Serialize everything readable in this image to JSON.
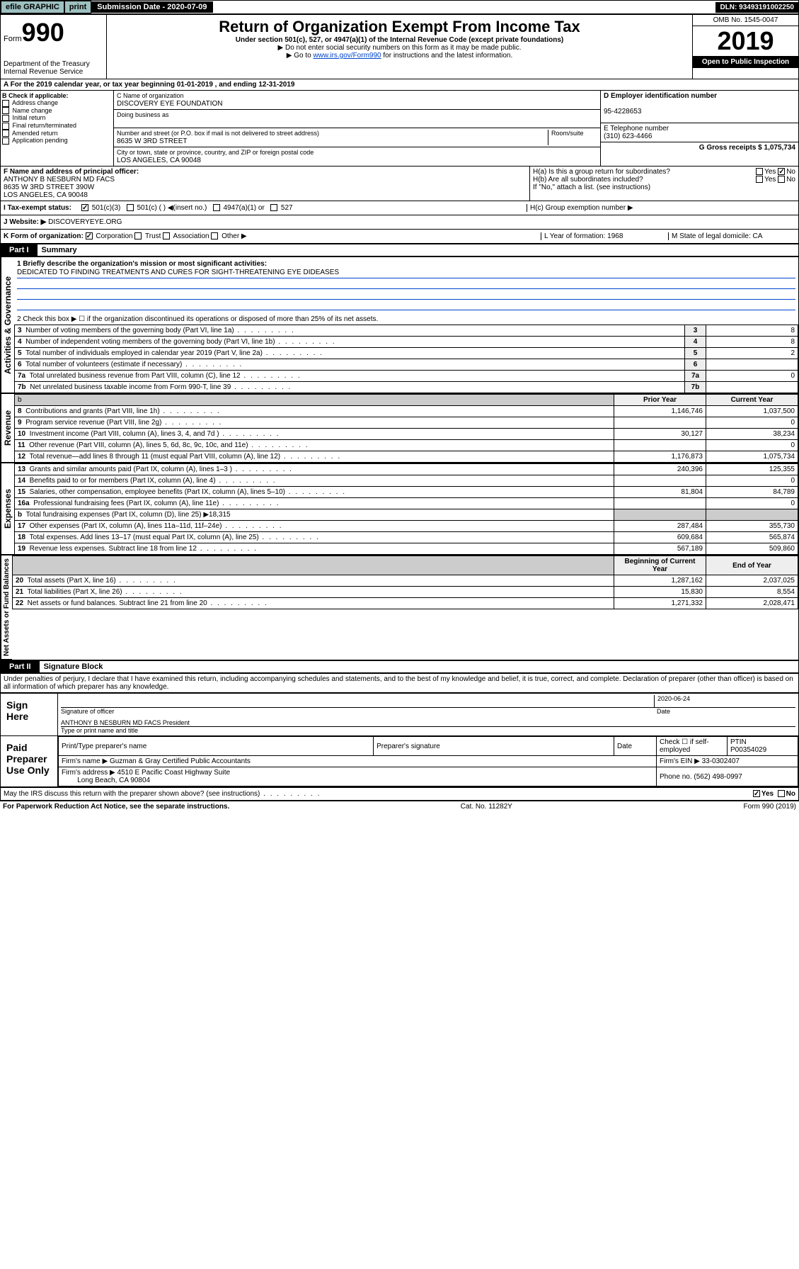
{
  "topbar": {
    "efile": "efile GRAPHIC",
    "print": "print",
    "subdate_lbl": "Submission Date - 2020-07-09",
    "dln": "DLN: 93493191002250"
  },
  "header": {
    "form_lbl": "Form",
    "form_num": "990",
    "dept": "Department of the Treasury\nInternal Revenue Service",
    "title": "Return of Organization Exempt From Income Tax",
    "sub": "Under section 501(c), 527, or 4947(a)(1) of the Internal Revenue Code (except private foundations)",
    "line1": "▶ Do not enter social security numbers on this form as it may be made public.",
    "line2a": "▶ Go to ",
    "line2link": "www.irs.gov/Form990",
    "line2b": " for instructions and the latest information.",
    "omb": "OMB No. 1545-0047",
    "year": "2019",
    "open": "Open to Public Inspection"
  },
  "A": {
    "text": "A For the 2019 calendar year, or tax year beginning 01-01-2019   , and ending 12-31-2019"
  },
  "B": {
    "hdr": "B Check if applicable:",
    "items": [
      "Address change",
      "Name change",
      "Initial return",
      "Final return/terminated",
      "Amended return",
      "Application pending"
    ]
  },
  "C": {
    "name_lbl": "C Name of organization",
    "name": "DISCOVERY EYE FOUNDATION",
    "dba_lbl": "Doing business as",
    "addr_lbl": "Number and street (or P.O. box if mail is not delivered to street address)",
    "room_lbl": "Room/suite",
    "addr": "8635 W 3RD STREET",
    "city_lbl": "City or town, state or province, country, and ZIP or foreign postal code",
    "city": "LOS ANGELES, CA  90048"
  },
  "D": {
    "lbl": "D Employer identification number",
    "val": "95-4228653"
  },
  "E": {
    "lbl": "E Telephone number",
    "val": "(310) 623-4466"
  },
  "G": {
    "lbl": "G Gross receipts $ 1,075,734"
  },
  "F": {
    "lbl": "F  Name and address of principal officer:",
    "name": "ANTHONY B NESBURN MD FACS",
    "addr": "8635 W 3RD STREET 390W\nLOS ANGELES, CA  90048"
  },
  "H": {
    "a": "H(a)  Is this a group return for subordinates?",
    "b": "H(b)  Are all subordinates included?",
    "bnote": "If \"No,\" attach a list. (see instructions)",
    "c": "H(c)  Group exemption number ▶",
    "yes": "Yes",
    "no": "No"
  },
  "I": {
    "lbl": "I  Tax-exempt status:",
    "opts": [
      "501(c)(3)",
      "501(c) (  ) ◀(insert no.)",
      "4947(a)(1) or",
      "527"
    ]
  },
  "J": {
    "lbl": "J  Website: ▶",
    "val": "DISCOVERYEYE.ORG"
  },
  "K": {
    "lbl": "K Form of organization:",
    "opts": [
      "Corporation",
      "Trust",
      "Association",
      "Other ▶"
    ]
  },
  "L": {
    "lbl": "L Year of formation: 1968"
  },
  "M": {
    "lbl": "M State of legal domicile: CA"
  },
  "part1": {
    "hdr": "Part I",
    "title": "Summary"
  },
  "gov": {
    "label": "Activities & Governance",
    "l1": "1  Briefly describe the organization's mission or most significant activities:",
    "mission": "DEDICATED TO FINDING TREATMENTS AND CURES FOR SIGHT-THREATENING EYE DIDEASES",
    "l2": "2   Check this box ▶ ☐  if the organization discontinued its operations or disposed of more than 25% of its net assets.",
    "rows": [
      {
        "n": "3",
        "t": "Number of voting members of the governing body (Part VI, line 1a)",
        "v": "8"
      },
      {
        "n": "4",
        "t": "Number of independent voting members of the governing body (Part VI, line 1b)",
        "v": "8"
      },
      {
        "n": "5",
        "t": "Total number of individuals employed in calendar year 2019 (Part V, line 2a)",
        "v": "2"
      },
      {
        "n": "6",
        "t": "Total number of volunteers (estimate if necessary)",
        "v": ""
      },
      {
        "n": "7a",
        "t": "Total unrelated business revenue from Part VIII, column (C), line 12",
        "v": "0"
      },
      {
        "n": "7b",
        "t": "Net unrelated business taxable income from Form 990-T, line 39",
        "v": ""
      }
    ]
  },
  "rev": {
    "label": "Revenue",
    "hdr_prior": "Prior Year",
    "hdr_curr": "Current Year",
    "rows": [
      {
        "n": "8",
        "t": "Contributions and grants (Part VIII, line 1h)",
        "p": "1,146,746",
        "c": "1,037,500"
      },
      {
        "n": "9",
        "t": "Program service revenue (Part VIII, line 2g)",
        "p": "",
        "c": "0"
      },
      {
        "n": "10",
        "t": "Investment income (Part VIII, column (A), lines 3, 4, and 7d )",
        "p": "30,127",
        "c": "38,234"
      },
      {
        "n": "11",
        "t": "Other revenue (Part VIII, column (A), lines 5, 6d, 8c, 9c, 10c, and 11e)",
        "p": "",
        "c": "0"
      },
      {
        "n": "12",
        "t": "Total revenue—add lines 8 through 11 (must equal Part VIII, column (A), line 12)",
        "p": "1,176,873",
        "c": "1,075,734"
      }
    ]
  },
  "exp": {
    "label": "Expenses",
    "rows": [
      {
        "n": "13",
        "t": "Grants and similar amounts paid (Part IX, column (A), lines 1–3 )",
        "p": "240,396",
        "c": "125,355"
      },
      {
        "n": "14",
        "t": "Benefits paid to or for members (Part IX, column (A), line 4)",
        "p": "",
        "c": "0"
      },
      {
        "n": "15",
        "t": "Salaries, other compensation, employee benefits (Part IX, column (A), lines 5–10)",
        "p": "81,804",
        "c": "84,789"
      },
      {
        "n": "16a",
        "t": "Professional fundraising fees (Part IX, column (A), line 11e)",
        "p": "",
        "c": "0"
      },
      {
        "n": "b",
        "t": "Total fundraising expenses (Part IX, column (D), line 25) ▶18,315",
        "p": null,
        "c": null
      },
      {
        "n": "17",
        "t": "Other expenses (Part IX, column (A), lines 11a–11d, 11f–24e)",
        "p": "287,484",
        "c": "355,730"
      },
      {
        "n": "18",
        "t": "Total expenses. Add lines 13–17 (must equal Part IX, column (A), line 25)",
        "p": "609,684",
        "c": "565,874"
      },
      {
        "n": "19",
        "t": "Revenue less expenses. Subtract line 18 from line 12",
        "p": "567,189",
        "c": "509,860"
      }
    ]
  },
  "net": {
    "label": "Net Assets or Fund Balances",
    "hdr_beg": "Beginning of Current Year",
    "hdr_end": "End of Year",
    "rows": [
      {
        "n": "20",
        "t": "Total assets (Part X, line 16)",
        "p": "1,287,162",
        "c": "2,037,025"
      },
      {
        "n": "21",
        "t": "Total liabilities (Part X, line 26)",
        "p": "15,830",
        "c": "8,554"
      },
      {
        "n": "22",
        "t": "Net assets or fund balances. Subtract line 21 from line 20",
        "p": "1,271,332",
        "c": "2,028,471"
      }
    ]
  },
  "part2": {
    "hdr": "Part II",
    "title": "Signature Block"
  },
  "perjury": "Under penalties of perjury, I declare that I have examined this return, including accompanying schedules and statements, and to the best of my knowledge and belief, it is true, correct, and complete. Declaration of preparer (other than officer) is based on all information of which preparer has any knowledge.",
  "sign": {
    "here": "Sign Here",
    "sig_lbl": "Signature of officer",
    "date_lbl": "Date",
    "date": "2020-06-24",
    "name": "ANTHONY B NESBURN MD FACS  President",
    "name_lbl": "Type or print name and title"
  },
  "paid": {
    "hdr": "Paid Preparer Use Only",
    "prep_lbl": "Print/Type preparer's name",
    "sig_lbl": "Preparer's signature",
    "date_lbl": "Date",
    "check_lbl": "Check ☐ if self-employed",
    "ptin_lbl": "PTIN",
    "ptin": "P00354029",
    "firm_lbl": "Firm's name   ▶",
    "firm": "Guzman & Gray Certified Public Accountants",
    "ein_lbl": "Firm's EIN ▶ 33-0302407",
    "addr_lbl": "Firm's address ▶",
    "addr": "4510 E Pacific Coast Highway Suite",
    "addr2": "Long Beach, CA  90804",
    "phone_lbl": "Phone no. (562) 498-0997"
  },
  "discuss": "May the IRS discuss this return with the preparer shown above? (see instructions)",
  "footer": {
    "left": "For Paperwork Reduction Act Notice, see the separate instructions.",
    "mid": "Cat. No. 11282Y",
    "right": "Form 990 (2019)"
  }
}
